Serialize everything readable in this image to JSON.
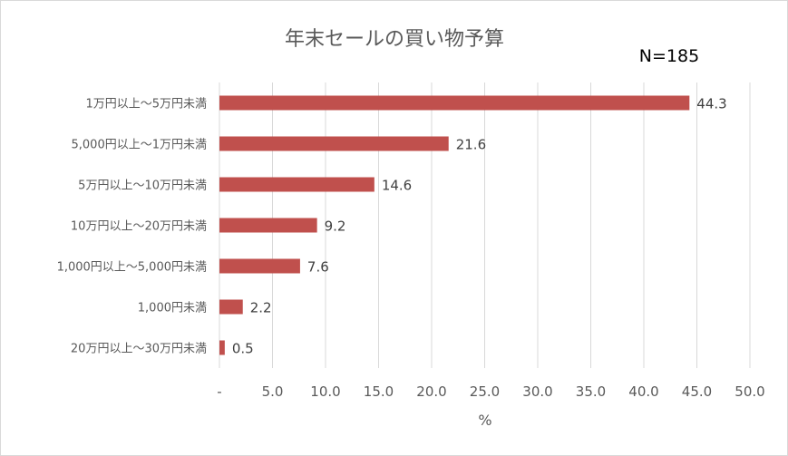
{
  "chart_data": {
    "type": "bar",
    "orientation": "horizontal",
    "title": "年末セールの買い物予算",
    "annotation": "N=185",
    "categories": [
      "1万円以上～5万円未満",
      "5,000円以上～1万円未満",
      "5万円以上～10万円未満",
      "10万円以上～20万円未満",
      "1,000円以上～5,000円未満",
      "1,000円未満",
      "20万円以上～30万円未満"
    ],
    "values": [
      44.3,
      21.6,
      14.6,
      9.2,
      7.6,
      2.2,
      0.5
    ],
    "data_labels": [
      "44.3",
      "21.6",
      "14.6",
      "9.2",
      "7.6",
      "2.2",
      "0.5"
    ],
    "xlim": [
      0,
      50
    ],
    "x_ticks": [
      0,
      5,
      10,
      15,
      20,
      25,
      30,
      35,
      40,
      45,
      50
    ],
    "x_tick_labels": [
      "-",
      "5.0",
      "10.0",
      "15.0",
      "20.0",
      "25.0",
      "30.0",
      "35.0",
      "40.0",
      "45.0",
      "50.0"
    ],
    "xlabel": "%",
    "ylabel": "",
    "grid": "vertical",
    "legend": "none",
    "colors": {
      "bar": "#c0504d",
      "grid": "#d9d9d9",
      "text": "#595959",
      "frame": "#d9d9d9"
    }
  }
}
